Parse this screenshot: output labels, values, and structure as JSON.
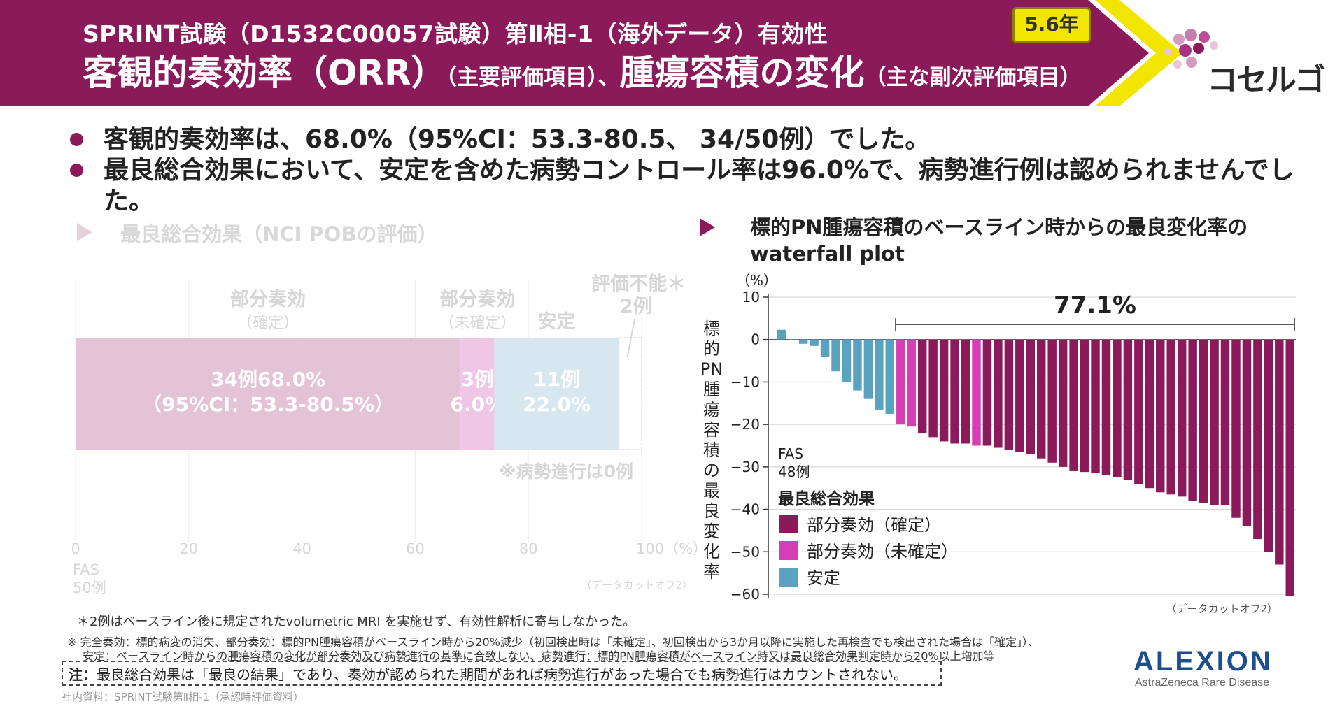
{
  "header": {
    "subtitle": "SPRINT試験（D1532C00057試験）第Ⅱ相-1（海外データ）有効性",
    "title_part1": "客観的奏効率（ORR）",
    "title_part2": "（主要評価項目）、",
    "title_part3": "腫瘍容積の変化",
    "title_part4": "（主な副次評価項目）",
    "badge": "5.6年",
    "logo": "コセルゴ",
    "colors": {
      "banner": "#8b1a5b",
      "accent": "#f2e600"
    }
  },
  "bullets": [
    "客観的奏効率は、68.0%（95%CI：53.3-80.5、 34/50例）でした。",
    "最良総合効果において、安定を含めた病勢コントロール率は96.0%で、病勢進行例は認められませんでした。"
  ],
  "left_section_title": "最良総合効果（NCI POBの評価）",
  "right_section_title_line1": "標的PN腫瘍容積のベースライン時からの最良変化率の",
  "right_section_title_line2": "waterfall plot",
  "chart_data": [
    {
      "type": "bar",
      "orientation": "horizontal-stacked",
      "title": "最良総合効果（NCI POBの評価）",
      "x_ticks": [
        "0",
        "20",
        "40",
        "60",
        "80",
        "100（%）"
      ],
      "xlim": [
        0,
        100
      ],
      "population_label": "FAS",
      "population_n": "50例",
      "segments": [
        {
          "name": "部分奏効",
          "name_sub": "（確定）",
          "value": 68.0,
          "count_label": "34例68.0%",
          "ci_label": "（95%CI：53.3-80.5%）",
          "color": "#e4c3d6"
        },
        {
          "name": "部分奏効",
          "name_sub": "（未確定）",
          "value": 6.0,
          "count_label": "3例",
          "pct_label": "6.0%",
          "color": "#f0c6e6"
        },
        {
          "name": "安定",
          "value": 22.0,
          "count_label": "11例",
          "pct_label": "22.0%",
          "color": "#d7e7ef"
        },
        {
          "name": "評価不能＊",
          "value": 4.0,
          "count_label": "2例",
          "color": "#ffffff"
        }
      ],
      "annotation": "※病勢進行は0例",
      "cutoff_note": "（データカットオフ2）"
    },
    {
      "type": "bar",
      "orientation": "waterfall",
      "y_unit": "（%）",
      "ylabel": "標的PN腫瘍容積の最良変化率",
      "ylim": [
        -60,
        10
      ],
      "y_ticks": [
        "10",
        "0",
        "−10",
        "−20",
        "−30",
        "−40",
        "−50",
        "−60"
      ],
      "bracket_label": "77.1%",
      "population_label": "FAS",
      "population_n": "48例",
      "legend_title": "最良総合効果",
      "legend": [
        {
          "name": "部分奏効（確定）",
          "color": "#8b1a5b"
        },
        {
          "name": "部分奏効（未確定）",
          "color": "#d63eb5"
        },
        {
          "name": "安定",
          "color": "#5aa3c0"
        }
      ],
      "values": [
        2.3,
        0,
        -1,
        -1.5,
        -4,
        -7.5,
        -10,
        -12,
        -14,
        -16.5,
        -17.5,
        -20,
        -20.5,
        -22,
        -23,
        -24,
        -24.5,
        -24.5,
        -25,
        -25,
        -25.5,
        -26,
        -26.5,
        -27,
        -28,
        -29,
        -30,
        -31,
        -31.2,
        -31.5,
        -32,
        -32.5,
        -33,
        -34,
        -35,
        -36,
        -36.5,
        -37,
        -38,
        -38.5,
        -39,
        -39,
        -42,
        -44,
        -47,
        -50,
        -53,
        -60.5
      ],
      "categories": [
        "stable",
        "stable",
        "stable",
        "stable",
        "stable",
        "stable",
        "stable",
        "stable",
        "stable",
        "stable",
        "stable",
        "unconfirmed",
        "unconfirmed",
        "confirmed",
        "confirmed",
        "confirmed",
        "confirmed",
        "confirmed",
        "unconfirmed",
        "confirmed",
        "confirmed",
        "confirmed",
        "confirmed",
        "confirmed",
        "confirmed",
        "confirmed",
        "confirmed",
        "confirmed",
        "confirmed",
        "confirmed",
        "confirmed",
        "confirmed",
        "confirmed",
        "confirmed",
        "confirmed",
        "confirmed",
        "confirmed",
        "confirmed",
        "confirmed",
        "confirmed",
        "confirmed",
        "confirmed",
        "confirmed",
        "confirmed",
        "confirmed",
        "confirmed",
        "confirmed",
        "confirmed"
      ],
      "cutoff_note": "（データカットオフ2）"
    }
  ],
  "footnotes": {
    "star": "＊2例はベースライン後に規定されたvolumetric MRI を実施せず、有効性解析に寄与しなかった。",
    "def1": "※ 完全奏効：標的病変の消失、部分奏効：標的PN腫瘍容積がベースライン時から20%減少（初回検出時は「未確定」、初回検出から3か月以降に実施した再検査でも検出された場合は「確定」）、",
    "def2": "安定：ベースライン時からの腫瘍容積の変化が部分奏効及び病勢進行の基準に合致しない、病勢進行：標的PN腫瘍容積がベースライン時又は最良総合効果判定時から20%以上増加等",
    "note_label": "注：",
    "note_text": "最良総合効果は「最良の結果」であり、奏効が認められた期間があれば病勢進行があった場合でも病勢進行はカウントされない。",
    "source": "社内資料：SPRINT試験第Ⅱ相-1（承認時評価資料）"
  },
  "brand": {
    "name": "ALEXION",
    "sub": "AstraZeneca Rare Disease"
  }
}
